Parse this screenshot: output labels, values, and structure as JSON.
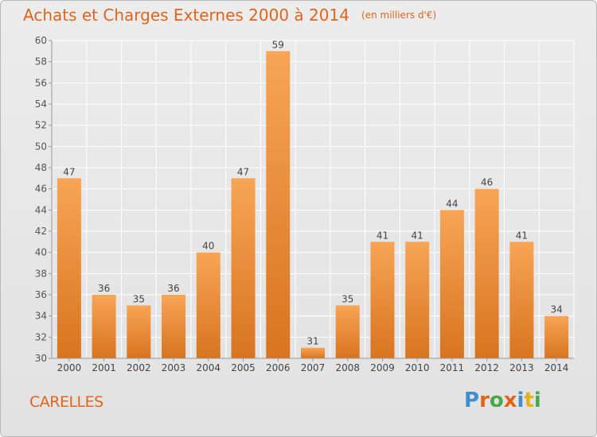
{
  "header": {
    "title": "Achats et Charges Externes 2000 à 2014",
    "unit": "(en milliers d'€)"
  },
  "footer": {
    "commune": "CARELLES",
    "logo_text": "Proxiti",
    "logo_colors": [
      "#3e8fd0",
      "#e0651c",
      "#4aa84a",
      "#e0651c",
      "#3e8fd0",
      "#e2b418",
      "#4aa84a"
    ]
  },
  "colors": {
    "bar_top": "#f7a556",
    "bar_bottom": "#d8741f",
    "accent": "#e0651c",
    "axis": "#9a9a9a",
    "grid": "#ffffff"
  },
  "chart_data": {
    "type": "bar",
    "title": "Achats et Charges Externes 2000 à 2014",
    "subtitle": "(en milliers d'€)",
    "categories": [
      "2000",
      "2001",
      "2002",
      "2003",
      "2004",
      "2005",
      "2006",
      "2007",
      "2008",
      "2009",
      "2010",
      "2011",
      "2012",
      "2013",
      "2014"
    ],
    "values": [
      47,
      36,
      35,
      36,
      40,
      47,
      59,
      31,
      35,
      41,
      41,
      44,
      46,
      41,
      34
    ],
    "ylim": [
      30,
      60
    ],
    "yticks": [
      30,
      32,
      34,
      36,
      38,
      40,
      42,
      44,
      46,
      48,
      50,
      52,
      54,
      56,
      58,
      60
    ],
    "grid": true,
    "data_labels": true
  }
}
